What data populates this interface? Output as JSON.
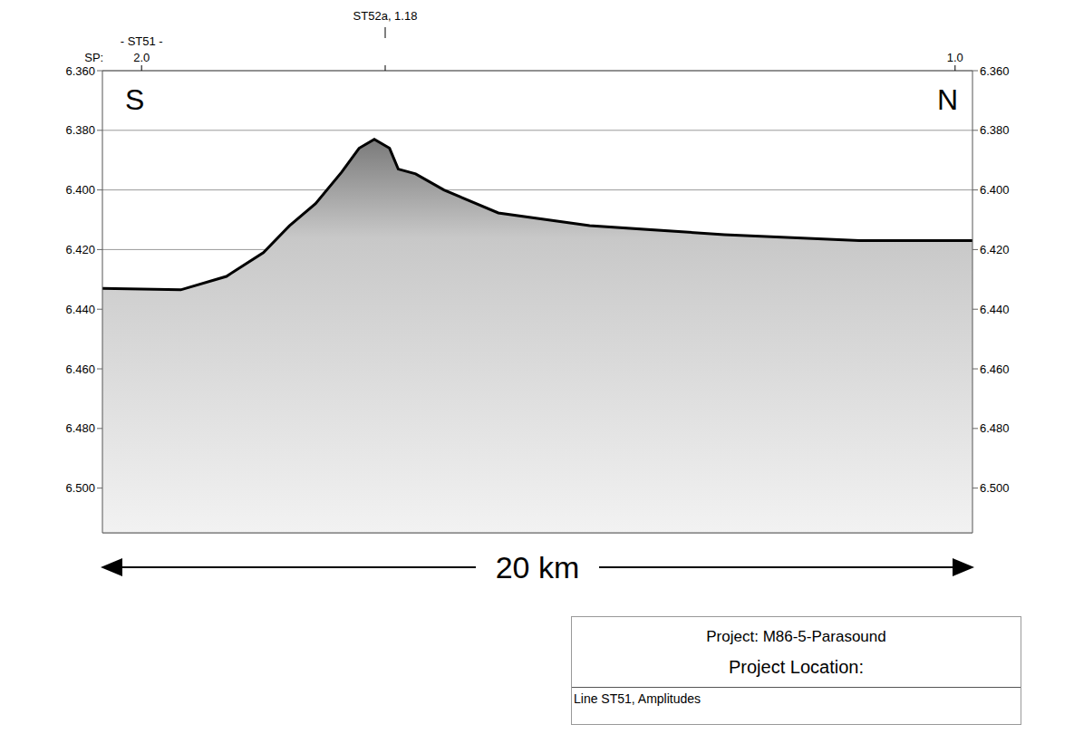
{
  "chart_data": {
    "type": "area",
    "x": [
      0,
      1.8,
      2.85,
      3.7,
      4.3,
      4.9,
      5.5,
      5.9,
      6.25,
      6.6,
      6.8,
      7.2,
      7.85,
      9.1,
      11.2,
      14.3,
      17.4,
      20
    ],
    "values": [
      6.433,
      6.4335,
      6.429,
      6.421,
      6.412,
      6.4046,
      6.394,
      6.386,
      6.383,
      6.386,
      6.393,
      6.3946,
      6.4,
      6.4077,
      6.412,
      6.415,
      6.417,
      6.417
    ],
    "color": "#000000",
    "xlim": [
      0,
      20
    ],
    "ylim": [
      6.36,
      6.515
    ],
    "yticks": [
      {
        "value": 6.36,
        "label": "6.360"
      },
      {
        "value": 6.38,
        "label": "6.380"
      },
      {
        "value": 6.4,
        "label": "6.400"
      },
      {
        "value": 6.42,
        "label": "6.420"
      },
      {
        "value": 6.44,
        "label": "6.440"
      },
      {
        "value": 6.46,
        "label": "6.460"
      },
      {
        "value": 6.48,
        "label": "6.480"
      },
      {
        "value": 6.5,
        "label": "6.500"
      }
    ],
    "grid": true,
    "top_axis": {
      "label": "SP:",
      "ticks": [
        {
          "value": 0.9,
          "label": "2.0"
        },
        {
          "value": 6.5,
          "label": "ST52a, 1.18"
        },
        {
          "value": 19.6,
          "label": "1.0"
        }
      ]
    },
    "annotations": [
      {
        "x": 0.9,
        "text": "- ST51 -"
      }
    ],
    "corner_labels": {
      "left": "S",
      "right": "N"
    },
    "scale_bar": "20 km",
    "info_box": [
      "Project: M86-5-Parasound",
      "Project Location:",
      "Line ST51, Amplitudes"
    ]
  }
}
